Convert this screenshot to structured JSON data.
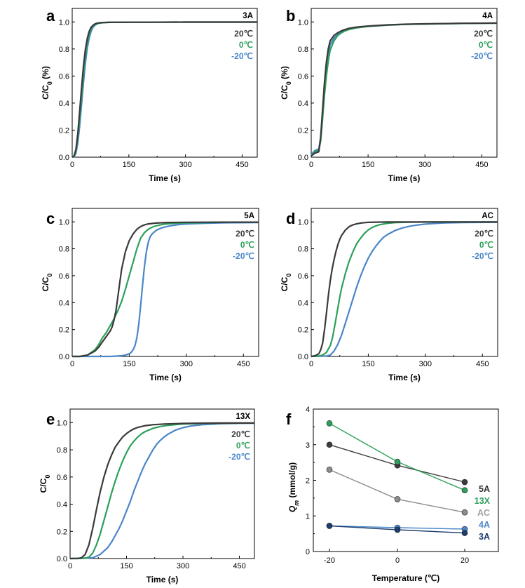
{
  "colors": {
    "t20": "#3a3a3a",
    "t0": "#2ca05a",
    "tm20": "#4a86c8",
    "series_5A": "#3c3c3c",
    "series_13X": "#2ca05a",
    "series_AC": "#8c8c8c",
    "series_4A": "#4a86c8",
    "series_3A": "#1c3d6e",
    "legend_5A": "#333333",
    "legend_13X": "#2ca05a",
    "legend_AC": "#a0a0a0",
    "legend_4A": "#4a86c8",
    "legend_3A": "#1c3d6e"
  },
  "legend_temps": [
    "20℃",
    "0℃",
    "-20℃"
  ],
  "chart_data": [
    {
      "panel": "a",
      "type": "line",
      "sample": "3A",
      "xlabel": "Time (s)",
      "ylabel": "C/C0 (%)",
      "xlim": [
        0,
        490
      ],
      "ylim": [
        0,
        1.1
      ],
      "xticks": [
        0,
        150,
        300,
        450
      ],
      "yticks": [
        0.0,
        0.2,
        0.4,
        0.6,
        0.8,
        1.0
      ],
      "series": [
        {
          "name": "20℃",
          "x": [
            0,
            5,
            10,
            15,
            20,
            25,
            30,
            35,
            40,
            45,
            50,
            55,
            60,
            65,
            70,
            80,
            90,
            100,
            120,
            150,
            200,
            300,
            400,
            490
          ],
          "y": [
            0,
            0.01,
            0.06,
            0.18,
            0.35,
            0.52,
            0.68,
            0.8,
            0.88,
            0.93,
            0.96,
            0.975,
            0.985,
            0.99,
            0.993,
            0.995,
            0.996,
            0.997,
            0.997,
            0.998,
            0.998,
            0.999,
            0.999,
            0.999
          ]
        },
        {
          "name": "0℃",
          "x": [
            0,
            5,
            10,
            15,
            20,
            25,
            30,
            35,
            40,
            45,
            50,
            55,
            60,
            65,
            70,
            80,
            90,
            100,
            120,
            150,
            200,
            300,
            400,
            490
          ],
          "y": [
            0,
            0.005,
            0.05,
            0.15,
            0.3,
            0.47,
            0.63,
            0.76,
            0.85,
            0.91,
            0.95,
            0.97,
            0.98,
            0.987,
            0.99,
            0.994,
            0.996,
            0.997,
            0.997,
            0.998,
            0.998,
            0.999,
            0.999,
            0.999
          ]
        },
        {
          "name": "-20℃",
          "x": [
            0,
            5,
            10,
            15,
            20,
            25,
            30,
            35,
            40,
            45,
            50,
            55,
            60,
            65,
            70,
            80,
            90,
            100,
            120,
            150,
            200,
            300,
            400,
            490
          ],
          "y": [
            0,
            0.003,
            0.03,
            0.11,
            0.24,
            0.4,
            0.56,
            0.7,
            0.81,
            0.88,
            0.93,
            0.96,
            0.975,
            0.984,
            0.99,
            0.994,
            0.996,
            0.997,
            0.997,
            0.998,
            0.998,
            0.999,
            0.999,
            0.999
          ]
        }
      ]
    },
    {
      "panel": "b",
      "type": "line",
      "sample": "4A",
      "xlabel": "Time (s)",
      "ylabel": "C/C0 (%)",
      "xlim": [
        0,
        490
      ],
      "ylim": [
        0,
        1.1
      ],
      "xticks": [
        0,
        150,
        300,
        450
      ],
      "yticks": [
        0.0,
        0.2,
        0.4,
        0.6,
        0.8,
        1.0
      ],
      "series": [
        {
          "name": "20℃",
          "x": [
            0,
            10,
            20,
            25,
            30,
            35,
            40,
            45,
            50,
            60,
            70,
            80,
            90,
            100,
            120,
            150,
            200,
            250,
            300,
            400,
            490
          ],
          "y": [
            0.01,
            0.03,
            0.04,
            0.15,
            0.35,
            0.55,
            0.7,
            0.8,
            0.86,
            0.9,
            0.92,
            0.935,
            0.945,
            0.953,
            0.962,
            0.97,
            0.978,
            0.983,
            0.986,
            0.99,
            0.992
          ]
        },
        {
          "name": "0℃",
          "x": [
            0,
            10,
            20,
            25,
            30,
            35,
            40,
            45,
            50,
            60,
            70,
            80,
            90,
            100,
            120,
            150,
            200,
            250,
            300,
            400,
            490
          ],
          "y": [
            0.01,
            0.04,
            0.05,
            0.12,
            0.28,
            0.46,
            0.6,
            0.71,
            0.79,
            0.86,
            0.9,
            0.92,
            0.935,
            0.945,
            0.957,
            0.967,
            0.976,
            0.982,
            0.985,
            0.989,
            0.991
          ]
        },
        {
          "name": "-20℃",
          "x": [
            0,
            10,
            20,
            25,
            30,
            35,
            40,
            45,
            50,
            60,
            70,
            80,
            90,
            100,
            120,
            150,
            200,
            250,
            300,
            400,
            490
          ],
          "y": [
            0.02,
            0.05,
            0.06,
            0.14,
            0.32,
            0.52,
            0.66,
            0.76,
            0.83,
            0.88,
            0.91,
            0.928,
            0.94,
            0.95,
            0.96,
            0.968,
            0.977,
            0.982,
            0.985,
            0.989,
            0.991
          ]
        }
      ]
    },
    {
      "panel": "c",
      "type": "line",
      "sample": "5A",
      "xlabel": "Time (s)",
      "ylabel": "C/C0",
      "xlim": [
        0,
        490
      ],
      "ylim": [
        0,
        1.1
      ],
      "xticks": [
        0,
        150,
        300,
        450
      ],
      "yticks": [
        0.0,
        0.2,
        0.4,
        0.6,
        0.8,
        1.0
      ],
      "series": [
        {
          "name": "20℃",
          "x": [
            0,
            20,
            40,
            60,
            70,
            80,
            90,
            100,
            105,
            110,
            115,
            120,
            125,
            130,
            140,
            150,
            160,
            170,
            180,
            190,
            200,
            220,
            250,
            300,
            400,
            490
          ],
          "y": [
            0,
            0,
            0.01,
            0.04,
            0.07,
            0.11,
            0.15,
            0.19,
            0.22,
            0.27,
            0.34,
            0.44,
            0.55,
            0.65,
            0.78,
            0.86,
            0.91,
            0.945,
            0.965,
            0.978,
            0.985,
            0.991,
            0.995,
            0.997,
            0.998,
            0.998
          ]
        },
        {
          "name": "0℃",
          "x": [
            0,
            20,
            40,
            60,
            70,
            80,
            90,
            100,
            110,
            120,
            130,
            140,
            150,
            160,
            170,
            175,
            180,
            190,
            200,
            210,
            220,
            240,
            260,
            300,
            400,
            490
          ],
          "y": [
            0,
            0,
            0.01,
            0.05,
            0.09,
            0.14,
            0.18,
            0.23,
            0.28,
            0.34,
            0.41,
            0.5,
            0.6,
            0.7,
            0.8,
            0.84,
            0.88,
            0.92,
            0.945,
            0.96,
            0.97,
            0.982,
            0.988,
            0.993,
            0.997,
            0.998
          ]
        },
        {
          "name": "-20℃",
          "x": [
            0,
            50,
            100,
            130,
            140,
            150,
            155,
            160,
            165,
            170,
            175,
            180,
            185,
            190,
            195,
            200,
            205,
            210,
            220,
            230,
            240,
            260,
            280,
            300,
            350,
            400,
            490
          ],
          "y": [
            0,
            0,
            0,
            0.005,
            0.01,
            0.02,
            0.03,
            0.05,
            0.08,
            0.14,
            0.24,
            0.38,
            0.53,
            0.67,
            0.78,
            0.85,
            0.89,
            0.91,
            0.935,
            0.95,
            0.96,
            0.972,
            0.98,
            0.985,
            0.99,
            0.993,
            0.995
          ]
        }
      ]
    },
    {
      "panel": "d",
      "type": "line",
      "sample": "AC",
      "xlabel": "Time (s)",
      "ylabel": "C/C0",
      "xlim": [
        0,
        490
      ],
      "ylim": [
        0,
        1.1
      ],
      "xticks": [
        0,
        150,
        300,
        450
      ],
      "yticks": [
        0.0,
        0.2,
        0.4,
        0.6,
        0.8,
        1.0
      ],
      "series": [
        {
          "name": "20℃",
          "x": [
            0,
            10,
            20,
            25,
            30,
            35,
            40,
            45,
            50,
            55,
            60,
            65,
            70,
            75,
            80,
            90,
            100,
            110,
            120,
            130,
            140,
            150,
            170,
            200,
            250,
            300,
            400,
            490
          ],
          "y": [
            0,
            0.005,
            0.02,
            0.05,
            0.1,
            0.2,
            0.32,
            0.45,
            0.56,
            0.65,
            0.72,
            0.78,
            0.83,
            0.87,
            0.9,
            0.94,
            0.965,
            0.978,
            0.986,
            0.991,
            0.994,
            0.996,
            0.998,
            0.999,
            0.999,
            0.999,
            0.999,
            0.999
          ]
        },
        {
          "name": "0℃",
          "x": [
            0,
            20,
            30,
            40,
            50,
            55,
            60,
            65,
            70,
            75,
            80,
            90,
            100,
            110,
            120,
            130,
            140,
            150,
            160,
            170,
            180,
            200,
            220,
            250,
            300,
            400,
            490
          ],
          "y": [
            0,
            0.003,
            0.01,
            0.03,
            0.08,
            0.13,
            0.2,
            0.28,
            0.36,
            0.44,
            0.51,
            0.62,
            0.71,
            0.78,
            0.84,
            0.88,
            0.915,
            0.94,
            0.958,
            0.97,
            0.979,
            0.989,
            0.994,
            0.997,
            0.999,
            0.999,
            0.999
          ]
        },
        {
          "name": "-20℃",
          "x": [
            0,
            40,
            50,
            60,
            70,
            80,
            90,
            100,
            110,
            120,
            130,
            140,
            150,
            160,
            170,
            180,
            190,
            200,
            220,
            240,
            260,
            280,
            300,
            350,
            400,
            490
          ],
          "y": [
            0,
            0.003,
            0.01,
            0.04,
            0.09,
            0.16,
            0.25,
            0.34,
            0.43,
            0.52,
            0.6,
            0.67,
            0.73,
            0.78,
            0.82,
            0.855,
            0.885,
            0.905,
            0.935,
            0.955,
            0.968,
            0.977,
            0.984,
            0.992,
            0.995,
            0.997
          ]
        }
      ]
    },
    {
      "panel": "e",
      "type": "line",
      "sample": "13X",
      "xlabel": "Time (s)",
      "ylabel": "C/C0",
      "xlim": [
        0,
        490
      ],
      "ylim": [
        0,
        1.1
      ],
      "xticks": [
        0,
        150,
        300,
        450
      ],
      "yticks": [
        0.0,
        0.2,
        0.4,
        0.6,
        0.8,
        1.0
      ],
      "series": [
        {
          "name": "20℃",
          "x": [
            0,
            20,
            30,
            40,
            50,
            60,
            70,
            80,
            90,
            100,
            110,
            120,
            130,
            140,
            150,
            160,
            170,
            180,
            200,
            220,
            250,
            300,
            350,
            400,
            490
          ],
          "y": [
            0,
            0,
            0.005,
            0.03,
            0.1,
            0.22,
            0.36,
            0.49,
            0.6,
            0.69,
            0.76,
            0.82,
            0.86,
            0.895,
            0.92,
            0.94,
            0.955,
            0.965,
            0.978,
            0.985,
            0.99,
            0.994,
            0.996,
            0.997,
            0.997
          ]
        },
        {
          "name": "0℃",
          "x": [
            0,
            40,
            50,
            60,
            70,
            80,
            90,
            100,
            110,
            120,
            130,
            140,
            150,
            160,
            170,
            180,
            190,
            200,
            220,
            240,
            260,
            280,
            300,
            350,
            400,
            490
          ],
          "y": [
            0,
            0.002,
            0.01,
            0.04,
            0.1,
            0.18,
            0.28,
            0.38,
            0.48,
            0.57,
            0.65,
            0.72,
            0.78,
            0.83,
            0.865,
            0.895,
            0.918,
            0.935,
            0.958,
            0.972,
            0.98,
            0.986,
            0.99,
            0.994,
            0.996,
            0.997
          ]
        },
        {
          "name": "-20℃",
          "x": [
            0,
            60,
            80,
            100,
            110,
            120,
            130,
            140,
            150,
            160,
            170,
            180,
            190,
            200,
            210,
            220,
            230,
            240,
            250,
            260,
            280,
            300,
            320,
            350,
            400,
            450,
            490
          ],
          "y": [
            0,
            0.005,
            0.03,
            0.08,
            0.12,
            0.17,
            0.22,
            0.28,
            0.35,
            0.42,
            0.5,
            0.57,
            0.64,
            0.7,
            0.75,
            0.8,
            0.84,
            0.87,
            0.895,
            0.915,
            0.945,
            0.963,
            0.975,
            0.985,
            0.992,
            0.995,
            0.996
          ]
        }
      ]
    },
    {
      "panel": "f",
      "type": "line",
      "xlabel": "Temperature (℃)",
      "ylabel": "Qm (mmol/g)",
      "ylim": [
        0,
        4
      ],
      "categories": [
        "-20",
        "0",
        "20"
      ],
      "yticks": [
        0,
        1,
        2,
        3,
        4
      ],
      "series": [
        {
          "name": "5A",
          "values": [
            3.0,
            2.42,
            1.95
          ]
        },
        {
          "name": "13X",
          "values": [
            3.6,
            2.52,
            1.72
          ]
        },
        {
          "name": "AC",
          "values": [
            2.3,
            1.47,
            1.1
          ]
        },
        {
          "name": "4A",
          "values": [
            0.72,
            0.67,
            0.63
          ]
        },
        {
          "name": "3A",
          "values": [
            0.72,
            0.61,
            0.52
          ]
        }
      ]
    }
  ]
}
